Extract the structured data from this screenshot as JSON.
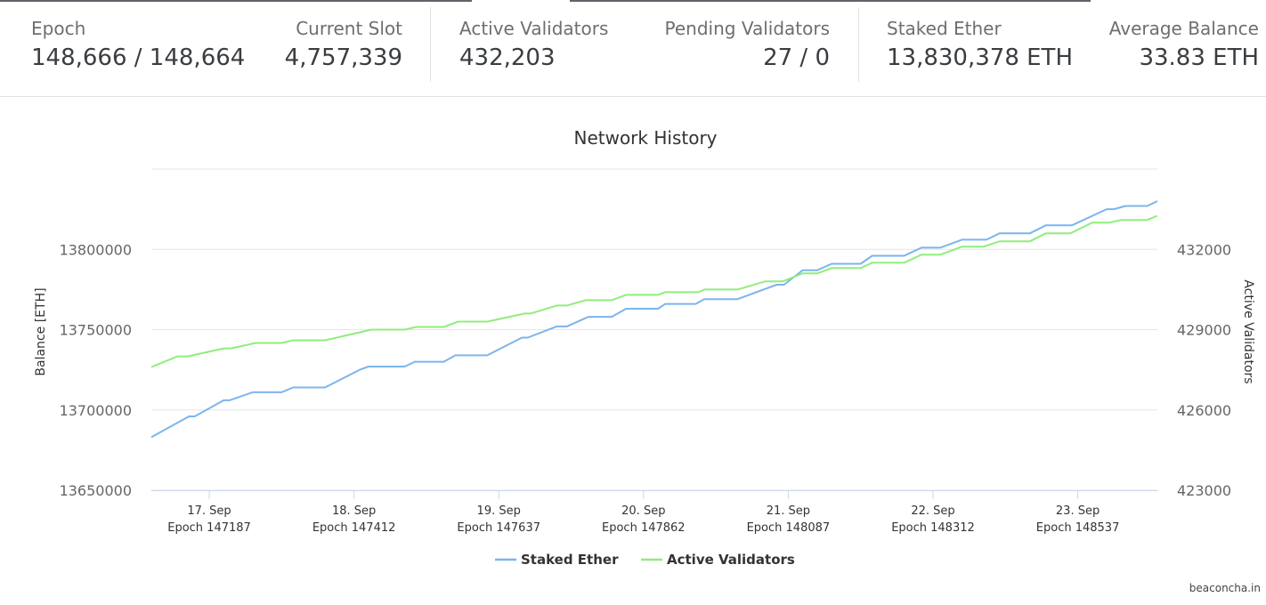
{
  "stats": {
    "epoch": {
      "label": "Epoch",
      "value": "148,666 / 148,664"
    },
    "slot": {
      "label": "Current Slot",
      "value": "4,757,339"
    },
    "active": {
      "label": "Active Validators",
      "value": "432,203"
    },
    "pending": {
      "label": "Pending Validators",
      "value": "27 / 0"
    },
    "staked": {
      "label": "Staked Ether",
      "value": "13,830,378 ETH"
    },
    "avg": {
      "label": "Average Balance",
      "value": "33.83 ETH"
    }
  },
  "credit": "beaconcha.in",
  "colors": {
    "staked": "#7cb5ec",
    "active": "#90ed7d",
    "grid": "#e6e6e6",
    "axis": "#ccd6eb"
  },
  "chart_data": {
    "type": "line",
    "title": "Network History",
    "x_unit": "days",
    "x_range": [
      16.6,
      23.55
    ],
    "x_ticks": [
      {
        "x": 17,
        "day": "17. Sep",
        "epoch": "Epoch 147187"
      },
      {
        "x": 18,
        "day": "18. Sep",
        "epoch": "Epoch 147412"
      },
      {
        "x": 19,
        "day": "19. Sep",
        "epoch": "Epoch 147637"
      },
      {
        "x": 20,
        "day": "20. Sep",
        "epoch": "Epoch 147862"
      },
      {
        "x": 21,
        "day": "21. Sep",
        "epoch": "Epoch 148087"
      },
      {
        "x": 22,
        "day": "22. Sep",
        "epoch": "Epoch 148312"
      },
      {
        "x": 23,
        "day": "23. Sep",
        "epoch": "Epoch 148537"
      }
    ],
    "y_left": {
      "label": "Balance [ETH]",
      "min": 13650000,
      "max": 13850000,
      "ticks": [
        "13650000",
        "13700000",
        "13750000",
        "13800000"
      ]
    },
    "y_right": {
      "label": "Active Validators",
      "min": 423000,
      "max": 435000,
      "ticks": [
        "423000",
        "426000",
        "429000",
        "432000"
      ]
    },
    "series": [
      {
        "name": "Staked Ether",
        "axis": "left",
        "points": [
          [
            16.6,
            13683000
          ],
          [
            16.86,
            13696000
          ],
          [
            16.9,
            13696000
          ],
          [
            17.1,
            13706000
          ],
          [
            17.14,
            13706000
          ],
          [
            17.3,
            13711000
          ],
          [
            17.5,
            13711000
          ],
          [
            17.58,
            13714000
          ],
          [
            17.8,
            13714000
          ],
          [
            18.04,
            13725000
          ],
          [
            18.1,
            13727000
          ],
          [
            18.35,
            13727000
          ],
          [
            18.42,
            13730000
          ],
          [
            18.62,
            13730000
          ],
          [
            18.7,
            13734000
          ],
          [
            18.92,
            13734000
          ],
          [
            19.16,
            13745000
          ],
          [
            19.2,
            13745000
          ],
          [
            19.4,
            13752000
          ],
          [
            19.47,
            13752000
          ],
          [
            19.62,
            13758000
          ],
          [
            19.78,
            13758000
          ],
          [
            19.88,
            13763000
          ],
          [
            20.1,
            13763000
          ],
          [
            20.15,
            13766000
          ],
          [
            20.36,
            13766000
          ],
          [
            20.42,
            13769000
          ],
          [
            20.65,
            13769000
          ],
          [
            20.92,
            13778000
          ],
          [
            20.97,
            13778000
          ],
          [
            21.1,
            13787000
          ],
          [
            21.2,
            13787000
          ],
          [
            21.3,
            13791000
          ],
          [
            21.5,
            13791000
          ],
          [
            21.58,
            13796000
          ],
          [
            21.8,
            13796000
          ],
          [
            21.92,
            13801000
          ],
          [
            22.05,
            13801000
          ],
          [
            22.2,
            13806000
          ],
          [
            22.37,
            13806000
          ],
          [
            22.46,
            13810000
          ],
          [
            22.67,
            13810000
          ],
          [
            22.78,
            13815000
          ],
          [
            22.96,
            13815000
          ],
          [
            23.2,
            13825000
          ],
          [
            23.25,
            13825000
          ],
          [
            23.33,
            13827000
          ],
          [
            23.48,
            13827000
          ],
          [
            23.55,
            13830000
          ]
        ]
      },
      {
        "name": "Active Validators",
        "axis": "right",
        "points": [
          [
            16.6,
            427600
          ],
          [
            16.78,
            428000
          ],
          [
            16.85,
            428000
          ],
          [
            17.1,
            428300
          ],
          [
            17.15,
            428300
          ],
          [
            17.32,
            428500
          ],
          [
            17.5,
            428500
          ],
          [
            17.58,
            428600
          ],
          [
            17.8,
            428600
          ],
          [
            18.04,
            428900
          ],
          [
            18.12,
            429000
          ],
          [
            18.35,
            429000
          ],
          [
            18.43,
            429100
          ],
          [
            18.62,
            429100
          ],
          [
            18.72,
            429300
          ],
          [
            18.92,
            429300
          ],
          [
            19.18,
            429600
          ],
          [
            19.22,
            429600
          ],
          [
            19.4,
            429900
          ],
          [
            19.47,
            429900
          ],
          [
            19.6,
            430100
          ],
          [
            19.78,
            430100
          ],
          [
            19.88,
            430300
          ],
          [
            20.1,
            430300
          ],
          [
            20.15,
            430400
          ],
          [
            20.38,
            430400
          ],
          [
            20.42,
            430500
          ],
          [
            20.65,
            430500
          ],
          [
            20.84,
            430800
          ],
          [
            20.96,
            430800
          ],
          [
            21.1,
            431100
          ],
          [
            21.2,
            431100
          ],
          [
            21.3,
            431300
          ],
          [
            21.5,
            431300
          ],
          [
            21.58,
            431500
          ],
          [
            21.8,
            431500
          ],
          [
            21.92,
            431800
          ],
          [
            22.05,
            431800
          ],
          [
            22.2,
            432100
          ],
          [
            22.35,
            432100
          ],
          [
            22.46,
            432300
          ],
          [
            22.67,
            432300
          ],
          [
            22.78,
            432600
          ],
          [
            22.95,
            432600
          ],
          [
            23.1,
            433000
          ],
          [
            23.22,
            433000
          ],
          [
            23.3,
            433100
          ],
          [
            23.48,
            433100
          ],
          [
            23.55,
            433250
          ]
        ]
      }
    ],
    "legend": {
      "position": "bottom-center"
    },
    "grid": true
  }
}
